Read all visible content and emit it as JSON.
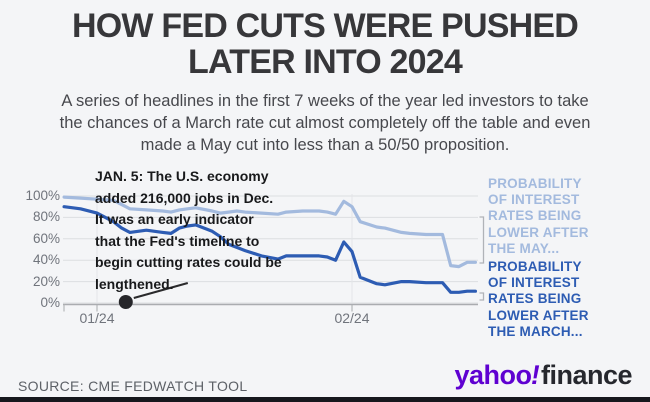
{
  "header": {
    "title_lines": [
      "HOW FED CUTS WERE PUSHED",
      "LATER INTO 2024"
    ],
    "subtitle_lines": [
      "A series of headlines in the first 7 weeks of the year led investors to take",
      "the chances of a March rate cut almost completely off the table and even",
      "made a May cut into less than a 50/50 proposition."
    ]
  },
  "annotation": {
    "lines": [
      "JAN. 5: The U.S. economy",
      "added 216,000 jobs in Dec.",
      "It was an early indicator",
      "that the Fed's timeline to",
      "begin cutting rates could be",
      "lengthened."
    ]
  },
  "legend": {
    "may": {
      "lines": [
        "PROBABILITY",
        "OF INTEREST",
        "RATES BEING",
        "LOWER AFTER",
        "THE MAY..."
      ],
      "color": "#a3bade"
    },
    "march": {
      "lines": [
        "PROBABILITY",
        "OF INTEREST",
        "RATES BEING",
        "LOWER AFTER",
        "THE MARCH..."
      ],
      "color": "#2d5cb3"
    }
  },
  "footer": {
    "source": "SOURCE: CME FEDWATCH TOOL",
    "logo": {
      "yahoo": "yahoo",
      "bang": "!",
      "finance": "finance",
      "yahoo_color": "#5f01d1",
      "finance_color": "#26282e"
    }
  },
  "chart_data": {
    "type": "line",
    "title": "HOW FED CUTS WERE PUSHED LATER INTO 2024",
    "x_axis": {
      "unit": "days since 01/01/2024",
      "ticks": [
        {
          "label": "01/24",
          "day": 0
        },
        {
          "label": "02/24",
          "day": 31
        }
      ]
    },
    "y_axis": {
      "min": 0,
      "max": 100,
      "ticks": [
        {
          "label": "100%",
          "value": 100
        },
        {
          "label": "80%",
          "value": 80
        },
        {
          "label": "60%",
          "value": 60
        },
        {
          "label": "40%",
          "value": 40
        },
        {
          "label": "20%",
          "value": 20
        },
        {
          "label": "0%",
          "value": 0
        }
      ]
    },
    "grid": true,
    "legend_position": "right",
    "series": [
      {
        "name": "may-cut-probability",
        "label": "PROBABILITY OF INTEREST RATES BEING LOWER AFTER THE MAY...",
        "color": "#a3bade",
        "points": [
          [
            -4,
            99
          ],
          [
            -2,
            98
          ],
          [
            0,
            97
          ],
          [
            2,
            96
          ],
          [
            3,
            92
          ],
          [
            4,
            88
          ],
          [
            6,
            87
          ],
          [
            8,
            86
          ],
          [
            9,
            85
          ],
          [
            10,
            87
          ],
          [
            11,
            88
          ],
          [
            12,
            89
          ],
          [
            14,
            86
          ],
          [
            15,
            84
          ],
          [
            16,
            85
          ],
          [
            17,
            86
          ],
          [
            18,
            85
          ],
          [
            20,
            84
          ],
          [
            22,
            83
          ],
          [
            23,
            85
          ],
          [
            25,
            86
          ],
          [
            27,
            86
          ],
          [
            28,
            85
          ],
          [
            29,
            83
          ],
          [
            30,
            95
          ],
          [
            31,
            90
          ],
          [
            32,
            76
          ],
          [
            34,
            71
          ],
          [
            35,
            70
          ],
          [
            37,
            66
          ],
          [
            38,
            65
          ],
          [
            40,
            64
          ],
          [
            42,
            64
          ],
          [
            43,
            35
          ],
          [
            44,
            34
          ],
          [
            45,
            38
          ],
          [
            46,
            38
          ]
        ]
      },
      {
        "name": "march-cut-probability",
        "label": "PROBABILITY OF INTEREST RATES BEING LOWER AFTER THE MARCH...",
        "color": "#2d5cb3",
        "points": [
          [
            -4,
            90
          ],
          [
            -2,
            88
          ],
          [
            0,
            84
          ],
          [
            2,
            76
          ],
          [
            3,
            70
          ],
          [
            4,
            66
          ],
          [
            6,
            68
          ],
          [
            8,
            66
          ],
          [
            9,
            65
          ],
          [
            10,
            70
          ],
          [
            11,
            72
          ],
          [
            12,
            73
          ],
          [
            14,
            67
          ],
          [
            15,
            62
          ],
          [
            16,
            55
          ],
          [
            17,
            52
          ],
          [
            18,
            49
          ],
          [
            20,
            44
          ],
          [
            22,
            41
          ],
          [
            23,
            44
          ],
          [
            25,
            44
          ],
          [
            27,
            44
          ],
          [
            28,
            43
          ],
          [
            29,
            40
          ],
          [
            30,
            57
          ],
          [
            31,
            48
          ],
          [
            32,
            24
          ],
          [
            34,
            18
          ],
          [
            35,
            17
          ],
          [
            37,
            20
          ],
          [
            38,
            20
          ],
          [
            40,
            19
          ],
          [
            42,
            19
          ],
          [
            43,
            10
          ],
          [
            44,
            10
          ],
          [
            45,
            11
          ],
          [
            46,
            11
          ]
        ]
      }
    ],
    "annotation_marker": {
      "day": 3.5,
      "value": 0
    }
  }
}
